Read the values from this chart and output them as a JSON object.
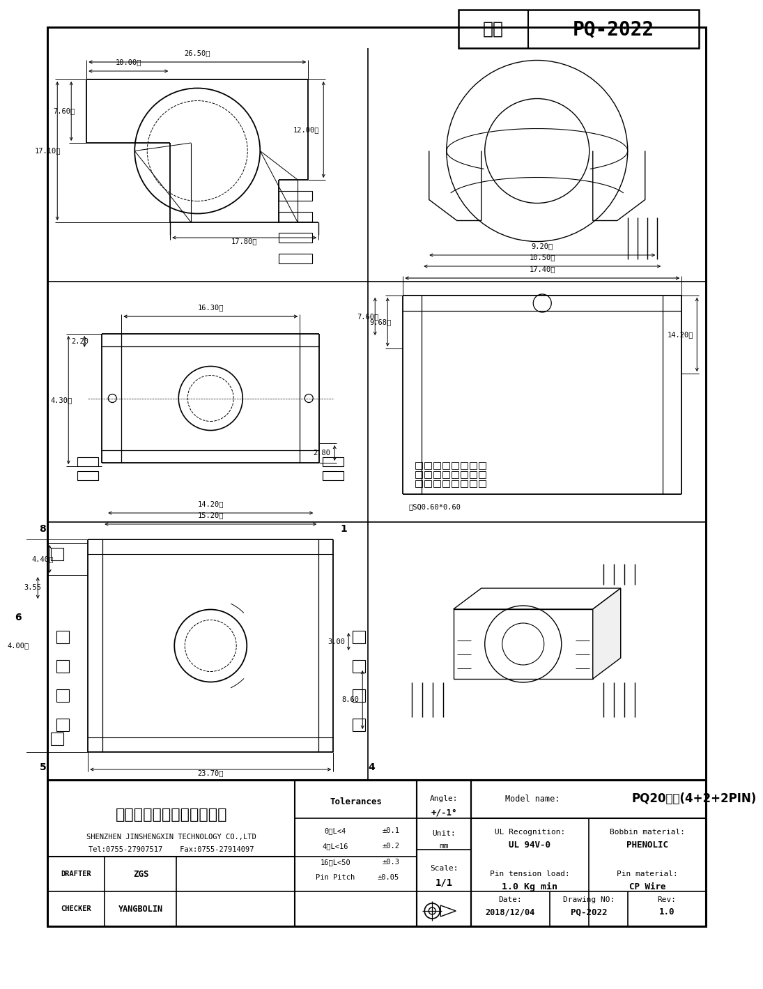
{
  "title": "PQ-2022",
  "type_label": "型号",
  "company_cn": "深圳市金盛鑫科技有限公司",
  "company_en": "SHENZHEN JINSHENGXIN TECHNOLOGY CO.,LTD",
  "company_contact": "Tel:0755-27907517    Fax:0755-27914097",
  "model_name": "PQ20立式(4+2+2PIN)",
  "angle": "+/-1°",
  "unit": "mm",
  "scale": "1/1",
  "ul_recognition": "UL 94V-0",
  "bobbin_material": "PHENOLIC",
  "pin_tension_load": "1.0 Kg min",
  "pin_material": "CP Wire",
  "date": "2018/12/04",
  "drawing_no": "PQ-2022",
  "rev": "1.0",
  "drafter": "ZGS",
  "checker": "YANGBOLIN",
  "tolerances": [
    [
      "0、L<4",
      "±0.1"
    ],
    [
      "4、L<16",
      "±0.2"
    ],
    [
      "16、L<50",
      "±0.3"
    ],
    [
      "Pin Pitch",
      "±0.05"
    ]
  ],
  "bg_color": "#ffffff",
  "lc": "#000000"
}
